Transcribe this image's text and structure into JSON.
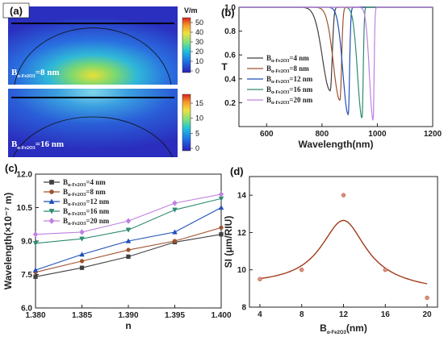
{
  "panels": {
    "a": {
      "label": "(a)",
      "top_text": "B",
      "top_sub": "α-Fe2O3",
      "top_val": "=8 nm",
      "bottom_text": "B",
      "bottom_sub": "α-Fe2O3",
      "bottom_val": "=16 nm",
      "unit": "V/m",
      "top_ticks": [
        "50",
        "40",
        "30",
        "20",
        "10",
        "0"
      ],
      "bottom_ticks": [
        "15",
        "10",
        "5",
        "0"
      ]
    },
    "b": {
      "label": "(b)"
    },
    "c": {
      "label": "(c)"
    },
    "d": {
      "label": "(d)"
    }
  },
  "colors": {
    "c4": "#404040",
    "c8": "#a0522d",
    "c12": "#1f4fb8",
    "c16": "#2e8b72",
    "c20": "#c080e0",
    "fit": "#a03a1a",
    "pt": "#e09080"
  },
  "chart_data": [
    {
      "panel": "b",
      "type": "line",
      "xlabel": "Wavelength(nm)",
      "ylabel": "T",
      "xlim": [
        500,
        1200
      ],
      "ylim": [
        0,
        1
      ],
      "xticks": [
        "600",
        "800",
        "1000",
        "1200"
      ],
      "yticks": [
        "0.2",
        "0.4",
        "0.6",
        "0.8",
        "1.0"
      ],
      "legend_placement": "center-left",
      "series": [
        {
          "name_main": "B",
          "name_sub": "α-Fe2O3",
          "name_val": "=4   nm",
          "min_x": 830,
          "min_y": 0.3,
          "width": 38,
          "color_key": "c4"
        },
        {
          "name_main": "B",
          "name_sub": "α-Fe2O3",
          "name_val": "=8   nm",
          "min_x": 865,
          "min_y": 0.22,
          "width": 32,
          "color_key": "c8"
        },
        {
          "name_main": "B",
          "name_sub": "α-Fe2O3",
          "name_val": "=12 nm",
          "min_x": 895,
          "min_y": 0.1,
          "width": 26,
          "color_key": "c12"
        },
        {
          "name_main": "B",
          "name_sub": "α-Fe2O3",
          "name_val": "=16 nm",
          "min_x": 945,
          "min_y": 0.07,
          "width": 22,
          "color_key": "c16"
        },
        {
          "name_main": "B",
          "name_sub": "α-Fe2O3",
          "name_val": "=20 nm",
          "min_x": 985,
          "min_y": 0.05,
          "width": 18,
          "color_key": "c20"
        }
      ]
    },
    {
      "panel": "c",
      "type": "line",
      "xlabel": "n",
      "ylabel": "Wavelength(×10⁻⁷ m)",
      "xlim": [
        1.38,
        1.4
      ],
      "ylim": [
        6.0,
        12.0
      ],
      "x": [
        1.38,
        1.385,
        1.39,
        1.395,
        1.4
      ],
      "xticks": [
        "1.380",
        "1.385",
        "1.390",
        "1.395",
        "1.400"
      ],
      "yticks": [
        "6.0",
        "7.5",
        "9.0",
        "10.5",
        "12.0"
      ],
      "legend_placement": "top-left",
      "series": [
        {
          "name_main": "B",
          "name_sub": "α-Fe2O3",
          "name_val": "=4   nm",
          "values": [
            7.4,
            7.8,
            8.3,
            8.95,
            9.3
          ],
          "marker": "square",
          "color_key": "c4"
        },
        {
          "name_main": "B",
          "name_sub": "α-Fe2O3",
          "name_val": "=8   nm",
          "values": [
            7.6,
            8.1,
            8.6,
            9.0,
            9.6
          ],
          "marker": "circle",
          "color_key": "c8"
        },
        {
          "name_main": "B",
          "name_sub": "α-Fe2O3",
          "name_val": "=12 nm",
          "values": [
            7.7,
            8.4,
            9.0,
            9.4,
            10.5
          ],
          "marker": "triangle",
          "color_key": "c12"
        },
        {
          "name_main": "B",
          "name_sub": "α-Fe2O3",
          "name_val": "=16 nm",
          "values": [
            8.9,
            9.1,
            9.5,
            10.4,
            10.9
          ],
          "marker": "triangle-down",
          "color_key": "c16"
        },
        {
          "name_main": "B",
          "name_sub": "α-Fe2O3",
          "name_val": "=20 nm",
          "values": [
            9.3,
            9.4,
            9.9,
            10.7,
            11.1
          ],
          "marker": "diamond",
          "color_key": "c20"
        }
      ]
    },
    {
      "panel": "d",
      "type": "scatter",
      "xlabel_main": "B",
      "xlabel_sub": "α-Fe2O3",
      "xlabel_val": "(nm)",
      "ylabel": "SI (μm/RIU)",
      "xlim": [
        3,
        21
      ],
      "ylim": [
        8,
        15
      ],
      "x": [
        4,
        8,
        12,
        16,
        20
      ],
      "values": [
        9.5,
        10.0,
        14.0,
        10.0,
        8.5
      ],
      "xticks": [
        "4",
        "8",
        "12",
        "16",
        "20"
      ],
      "yticks": [
        "8",
        "10",
        "12",
        "14"
      ],
      "fit": {
        "type": "lorentzian",
        "base": 9.2,
        "peak_x": 12,
        "peak_y": 12.65,
        "half_width": 3.3
      }
    }
  ]
}
